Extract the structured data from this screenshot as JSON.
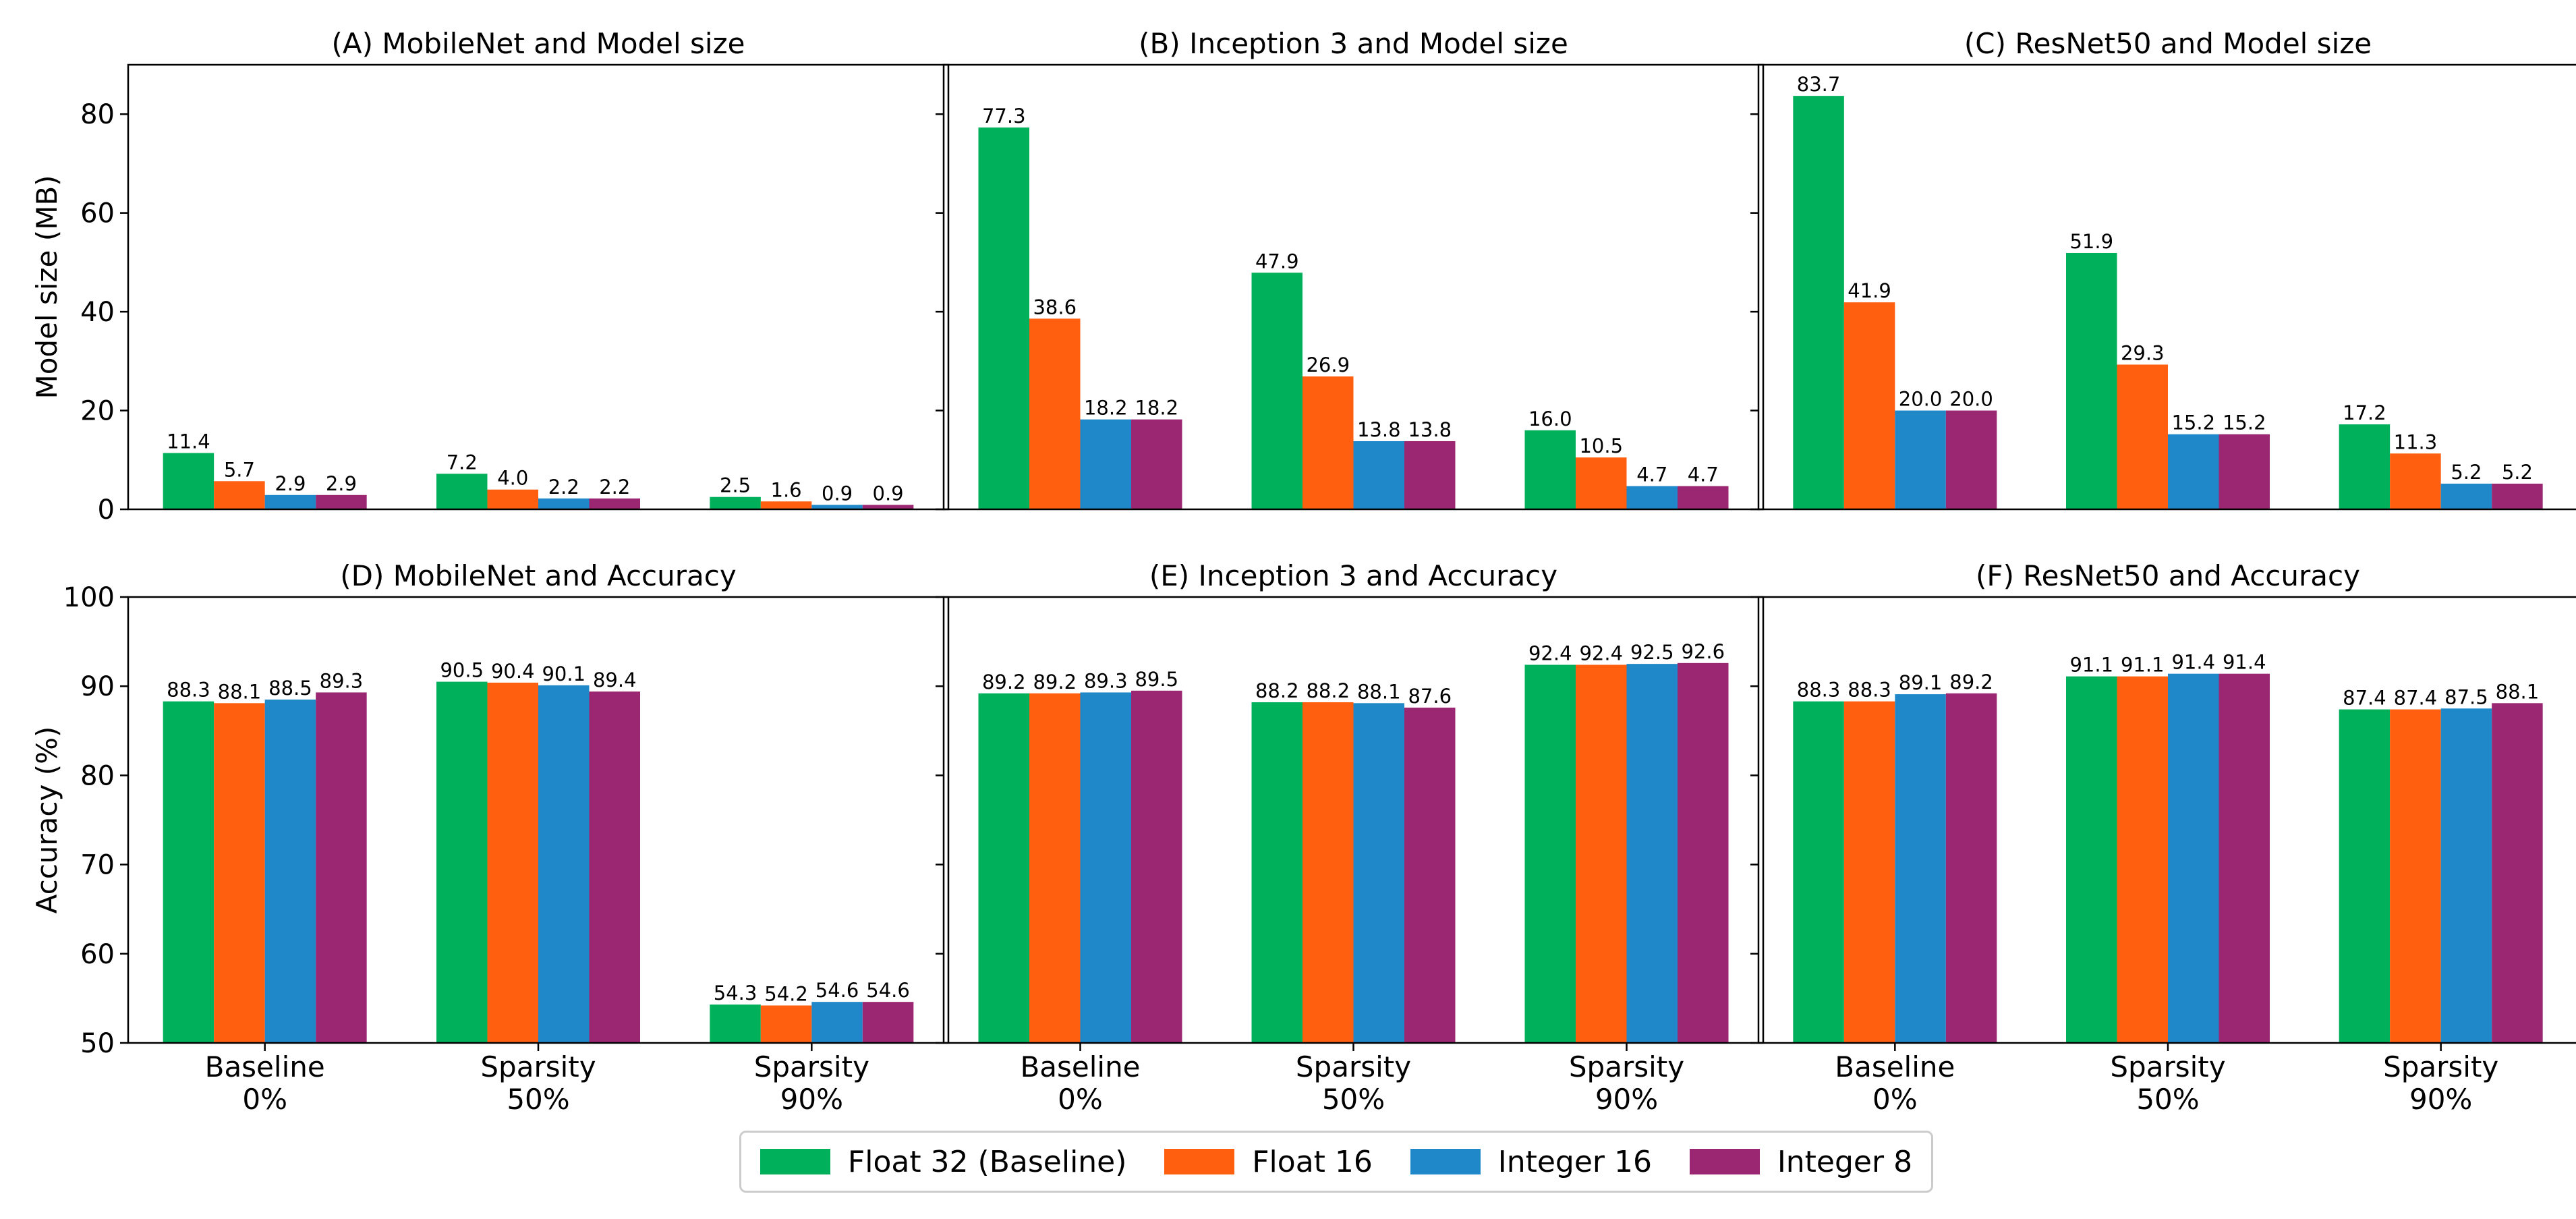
{
  "colors": {
    "float32": "#00B05A",
    "float16": "#FF5F0F",
    "int16": "#1E88C8",
    "int8": "#9B2772"
  },
  "legend": [
    {
      "label": "Float 32 (Baseline)",
      "color": "#00B05A"
    },
    {
      "label": "Float 16",
      "color": "#FF5F0F"
    },
    {
      "label": "Integer 16",
      "color": "#1E88C8"
    },
    {
      "label": "Integer 8",
      "color": "#9B2772"
    }
  ],
  "chart_data": [
    {
      "id": "A",
      "type": "bar",
      "title": "(A) MobileNet and Model size",
      "ylabel": "Model size (MB)",
      "ylim": [
        0,
        90
      ],
      "yticks": [
        0,
        20,
        40,
        60,
        80
      ],
      "categories": [
        "Baseline\n0%",
        "Sparsity\n50%",
        "Sparsity\n90%"
      ],
      "series": [
        {
          "name": "Float 32 (Baseline)",
          "values": [
            11.4,
            7.2,
            2.5
          ],
          "labels": [
            "11.4",
            "7.2",
            "2.5"
          ]
        },
        {
          "name": "Float 16",
          "values": [
            5.7,
            4.0,
            1.6
          ],
          "labels": [
            "5.7",
            "4.0",
            "1.6"
          ]
        },
        {
          "name": "Integer 16",
          "values": [
            2.9,
            2.2,
            0.9
          ],
          "labels": [
            "2.9",
            "2.2",
            "0.9"
          ]
        },
        {
          "name": "Integer 8",
          "values": [
            2.9,
            2.2,
            0.9
          ],
          "labels": [
            "2.9",
            "2.2",
            "0.9"
          ]
        }
      ]
    },
    {
      "id": "B",
      "type": "bar",
      "title": "(B) Inception 3 and Model size",
      "ylabel": "",
      "ylim": [
        0,
        90
      ],
      "yticks": [
        0,
        20,
        40,
        60,
        80
      ],
      "categories": [
        "Baseline\n0%",
        "Sparsity\n50%",
        "Sparsity\n90%"
      ],
      "series": [
        {
          "name": "Float 32 (Baseline)",
          "values": [
            77.3,
            47.9,
            16.0
          ],
          "labels": [
            "77.3",
            "47.9",
            "16.0"
          ]
        },
        {
          "name": "Float 16",
          "values": [
            38.6,
            26.9,
            10.5
          ],
          "labels": [
            "38.6",
            "26.9",
            "10.5"
          ]
        },
        {
          "name": "Integer 16",
          "values": [
            18.2,
            13.8,
            4.7
          ],
          "labels": [
            "18.2",
            "13.8",
            "4.7"
          ]
        },
        {
          "name": "Integer 8",
          "values": [
            18.2,
            13.8,
            4.7
          ],
          "labels": [
            "18.2",
            "13.8",
            "4.7"
          ]
        }
      ]
    },
    {
      "id": "C",
      "type": "bar",
      "title": "(C) ResNet50 and Model size",
      "ylabel": "",
      "ylim": [
        0,
        90
      ],
      "yticks": [
        0,
        20,
        40,
        60,
        80
      ],
      "categories": [
        "Baseline\n0%",
        "Sparsity\n50%",
        "Sparsity\n90%"
      ],
      "series": [
        {
          "name": "Float 32 (Baseline)",
          "values": [
            83.7,
            51.9,
            17.2
          ],
          "labels": [
            "83.7",
            "51.9",
            "17.2"
          ]
        },
        {
          "name": "Float 16",
          "values": [
            41.9,
            29.3,
            11.3
          ],
          "labels": [
            "41.9",
            "29.3",
            "11.3"
          ]
        },
        {
          "name": "Integer 16",
          "values": [
            20.0,
            15.2,
            5.2
          ],
          "labels": [
            "20.0",
            "15.2",
            "5.2"
          ]
        },
        {
          "name": "Integer 8",
          "values": [
            20.0,
            15.2,
            5.2
          ],
          "labels": [
            "20.0",
            "15.2",
            "5.2"
          ]
        }
      ]
    },
    {
      "id": "D",
      "type": "bar",
      "title": "(D) MobileNet and Accuracy",
      "ylabel": "Accuracy (%)",
      "ylim": [
        50,
        100
      ],
      "yticks": [
        50,
        60,
        70,
        80,
        90,
        100
      ],
      "categories": [
        "Baseline\n0%",
        "Sparsity\n50%",
        "Sparsity\n90%"
      ],
      "series": [
        {
          "name": "Float 32 (Baseline)",
          "values": [
            88.3,
            90.5,
            54.3
          ],
          "labels": [
            "88.3",
            "90.5",
            "54.3"
          ]
        },
        {
          "name": "Float 16",
          "values": [
            88.1,
            90.4,
            54.2
          ],
          "labels": [
            "88.1",
            "90.4",
            "54.2"
          ]
        },
        {
          "name": "Integer 16",
          "values": [
            88.5,
            90.1,
            54.6
          ],
          "labels": [
            "88.5",
            "90.1",
            "54.6"
          ]
        },
        {
          "name": "Integer 8",
          "values": [
            89.3,
            89.4,
            54.6
          ],
          "labels": [
            "89.3",
            "89.4",
            "54.6"
          ]
        }
      ]
    },
    {
      "id": "E",
      "type": "bar",
      "title": "(E) Inception 3 and Accuracy",
      "ylabel": "",
      "ylim": [
        50,
        100
      ],
      "yticks": [
        50,
        60,
        70,
        80,
        90,
        100
      ],
      "categories": [
        "Baseline\n0%",
        "Sparsity\n50%",
        "Sparsity\n90%"
      ],
      "series": [
        {
          "name": "Float 32 (Baseline)",
          "values": [
            89.2,
            88.2,
            92.4
          ],
          "labels": [
            "89.2",
            "88.2",
            "92.4"
          ]
        },
        {
          "name": "Float 16",
          "values": [
            89.2,
            88.2,
            92.4
          ],
          "labels": [
            "89.2",
            "88.2",
            "92.4"
          ]
        },
        {
          "name": "Integer 16",
          "values": [
            89.3,
            88.1,
            92.5
          ],
          "labels": [
            "89.3",
            "88.1",
            "92.5"
          ]
        },
        {
          "name": "Integer 8",
          "values": [
            89.5,
            87.6,
            92.6
          ],
          "labels": [
            "89.5",
            "87.6",
            "92.6"
          ]
        }
      ]
    },
    {
      "id": "F",
      "type": "bar",
      "title": "(F) ResNet50 and Accuracy",
      "ylabel": "",
      "ylim": [
        50,
        100
      ],
      "yticks": [
        50,
        60,
        70,
        80,
        90,
        100
      ],
      "categories": [
        "Baseline\n0%",
        "Sparsity\n50%",
        "Sparsity\n90%"
      ],
      "series": [
        {
          "name": "Float 32 (Baseline)",
          "values": [
            88.3,
            91.1,
            87.4
          ],
          "labels": [
            "88.3",
            "91.1",
            "87.4"
          ]
        },
        {
          "name": "Float 16",
          "values": [
            88.3,
            91.1,
            87.4
          ],
          "labels": [
            "88.3",
            "91.1",
            "87.4"
          ]
        },
        {
          "name": "Integer 16",
          "values": [
            89.1,
            91.4,
            87.5
          ],
          "labels": [
            "89.1",
            "91.4",
            "87.5"
          ]
        },
        {
          "name": "Integer 8",
          "values": [
            89.2,
            91.4,
            88.1
          ],
          "labels": [
            "89.2",
            "91.4",
            "88.1"
          ]
        }
      ]
    }
  ]
}
